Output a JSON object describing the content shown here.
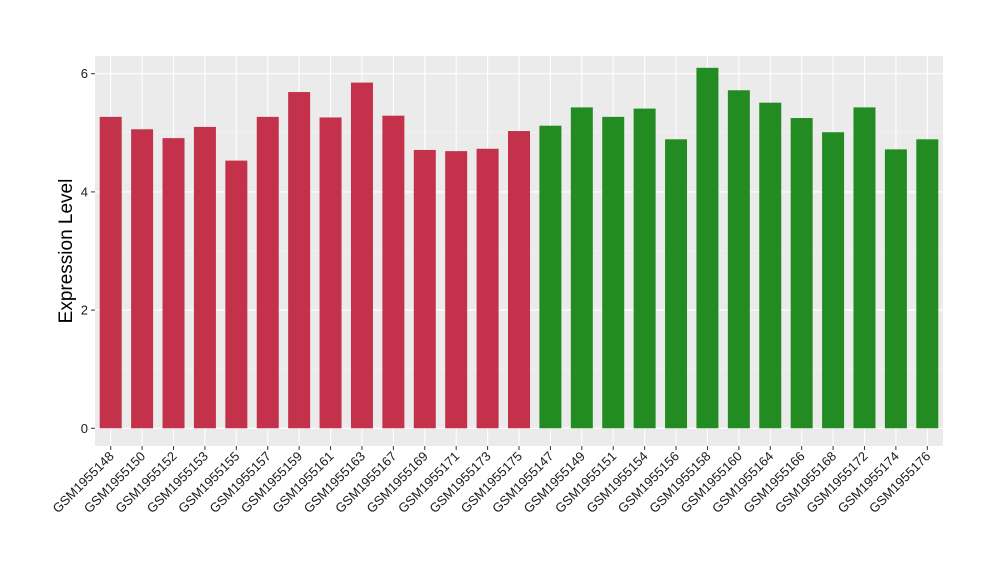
{
  "chart_data": {
    "type": "bar",
    "title": "",
    "xlabel": "",
    "ylabel": "Expression Level",
    "ylim": [
      -0.3,
      6.3
    ],
    "y_ticks": [
      0,
      2,
      4,
      6
    ],
    "grid": true,
    "legend": "none",
    "colors": {
      "group1": "#c3314a",
      "group2": "#228b22",
      "panel": "#ebebeb"
    },
    "categories": [
      "GSM1955148",
      "GSM1955150",
      "GSM1955152",
      "GSM1955153",
      "GSM1955155",
      "GSM1955157",
      "GSM1955159",
      "GSM1955161",
      "GSM1955163",
      "GSM1955167",
      "GSM1955169",
      "GSM1955171",
      "GSM1955173",
      "GSM1955175",
      "GSM1955147",
      "GSM1955149",
      "GSM1955151",
      "GSM1955154",
      "GSM1955156",
      "GSM1955158",
      "GSM1955160",
      "GSM1955164",
      "GSM1955166",
      "GSM1955168",
      "GSM1955172",
      "GSM1955174",
      "GSM1955176"
    ],
    "values": [
      5.27,
      5.06,
      4.91,
      5.1,
      4.53,
      5.27,
      5.69,
      5.26,
      5.85,
      5.29,
      4.71,
      4.69,
      4.73,
      5.03,
      5.12,
      5.43,
      5.27,
      5.41,
      4.89,
      6.1,
      5.72,
      5.51,
      5.25,
      5.01,
      5.43,
      4.72,
      4.89
    ],
    "groups": [
      1,
      1,
      1,
      1,
      1,
      1,
      1,
      1,
      1,
      1,
      1,
      1,
      1,
      1,
      2,
      2,
      2,
      2,
      2,
      2,
      2,
      2,
      2,
      2,
      2,
      2,
      2
    ]
  }
}
